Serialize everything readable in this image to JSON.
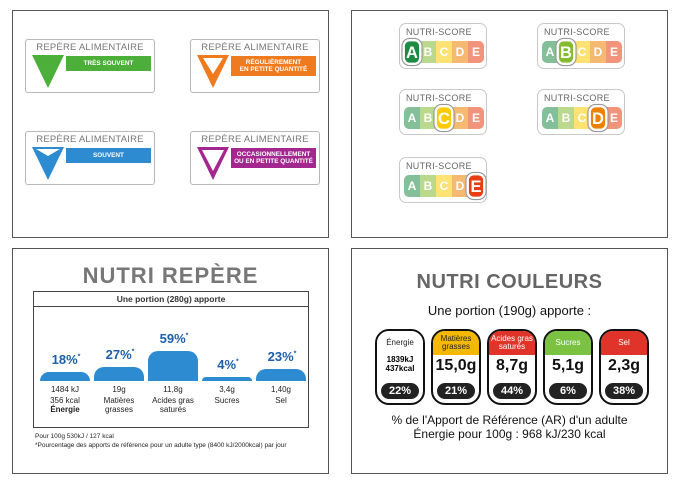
{
  "repere": {
    "title": "REPÈRE ALIMENTAIRE",
    "items": [
      {
        "label": "TRÈS SOUVENT",
        "color": "#4caf3a"
      },
      {
        "label": "RÉGULIÈREMENT EN PETITE QUANTITÉ",
        "line1": "RÉGULIÈREMENT",
        "line2": "EN PETITE QUANTITÉ",
        "color": "#f07a1e"
      },
      {
        "label": "SOUVENT",
        "color": "#2d8bd2"
      },
      {
        "label": "OCCASIONNELLEMENT OU EN PETITE QUANTITÉ",
        "line1": "OCCASIONNELLEMENT",
        "line2": "OU EN PETITE QUANTITÉ",
        "color": "#a3278f"
      }
    ]
  },
  "nutriscore": {
    "title": "NUTRI-SCORE",
    "letters": [
      "A",
      "B",
      "C",
      "D",
      "E"
    ],
    "colors": [
      "#1e8b44",
      "#85bb2f",
      "#fecb02",
      "#ee8100",
      "#e63e11"
    ],
    "selected": [
      "A",
      "B",
      "C",
      "D",
      "E"
    ]
  },
  "nutri_repere": {
    "title": "NUTRI REPÈRE",
    "subtitle": "Une portion (280g) apporte",
    "items": [
      {
        "pct": "18%",
        "val1": "1484 kJ",
        "val2": "356 kcal",
        "val3": "Énergie"
      },
      {
        "pct": "27%",
        "val1": "19g",
        "val2": "Matières",
        "val3": "grasses"
      },
      {
        "pct": "59%",
        "val1": "11,8g",
        "val2": "Acides gras",
        "val3": "saturés"
      },
      {
        "pct": "4%",
        "val1": "3,4g",
        "val2": "Sucres",
        "val3": ""
      },
      {
        "pct": "23%",
        "val1": "1,40g",
        "val2": "Sel",
        "val3": ""
      }
    ],
    "levels": [
      0.18,
      0.27,
      0.59,
      0.04,
      0.23
    ],
    "star": "*",
    "footnote1": "Pour 100g  530kJ / 127 kcal",
    "footnote2": "*Pourcentage des apports de référence pour un adulte type (8400 kJ/2000kcal) par jour",
    "bar_color": "#2d8bd2"
  },
  "nutri_couleurs": {
    "title": "NUTRI COULEURS",
    "subtitle": "Une portion (190g) apporte :",
    "items": [
      {
        "head": "Énergie",
        "val": "1839kJ",
        "val2": "437kcal",
        "pct": "22%",
        "color": "#ffffff"
      },
      {
        "head": "Matières grasses",
        "val": "15,0g",
        "pct": "21%",
        "color": "#f5b800"
      },
      {
        "head": "Acides gras saturés",
        "val": "8,7g",
        "pct": "44%",
        "color": "#e0342a"
      },
      {
        "head": "Sucres",
        "val": "5,1g",
        "pct": "6%",
        "color": "#7cc242"
      },
      {
        "head": "Sel",
        "val": "2,3g",
        "pct": "38%",
        "color": "#e0342a"
      }
    ],
    "foot1": "% de l'Apport de Référence (AR) d'un adulte",
    "foot2": "Énergie pour 100g : 968 kJ/230 kcal"
  }
}
